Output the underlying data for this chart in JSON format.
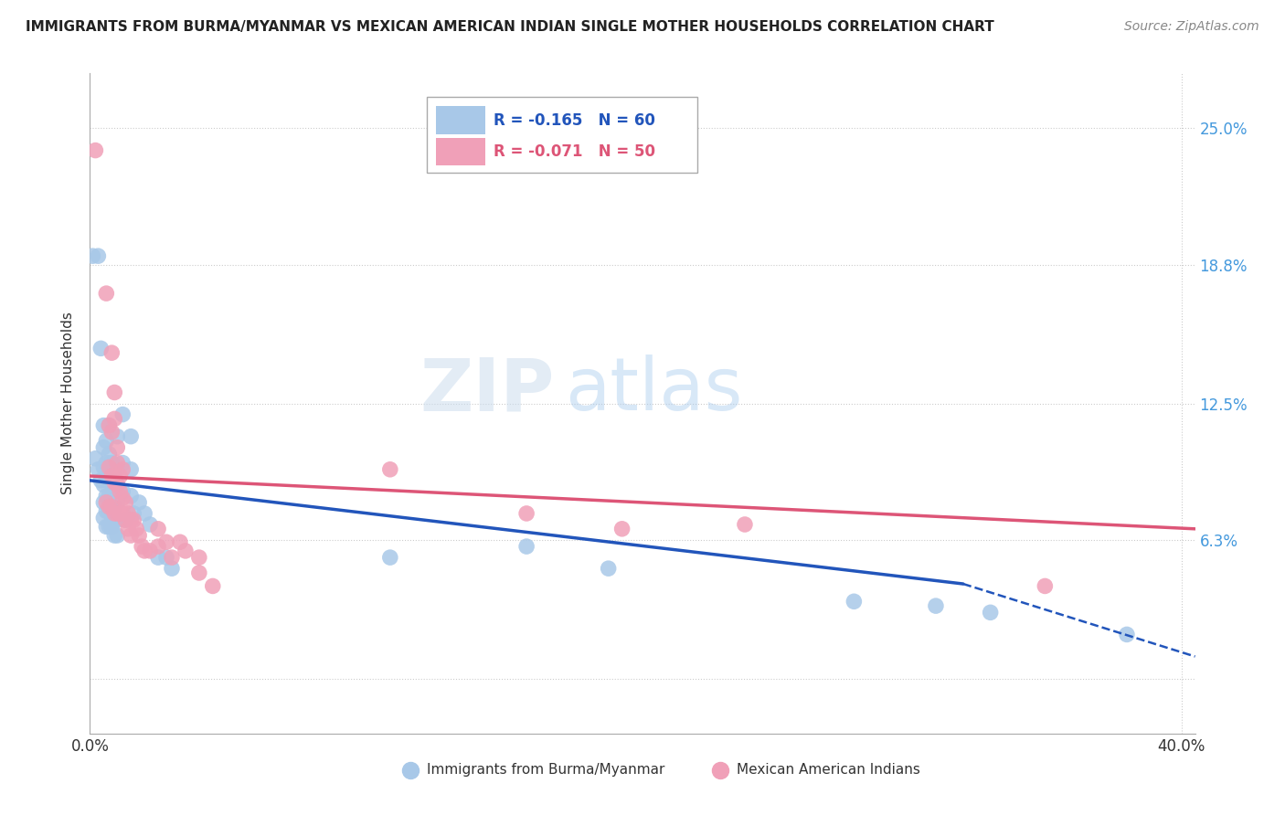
{
  "title": "IMMIGRANTS FROM BURMA/MYANMAR VS MEXICAN AMERICAN INDIAN SINGLE MOTHER HOUSEHOLDS CORRELATION CHART",
  "source": "Source: ZipAtlas.com",
  "ylabel": "Single Mother Households",
  "xlim": [
    0.0,
    0.405
  ],
  "ylim": [
    -0.025,
    0.275
  ],
  "yticks": [
    0.0,
    0.063,
    0.125,
    0.188,
    0.25
  ],
  "ytick_labels": [
    "",
    "6.3%",
    "12.5%",
    "18.8%",
    "25.0%"
  ],
  "xticks": [
    0.0,
    0.1,
    0.2,
    0.3,
    0.4
  ],
  "xtick_labels": [
    "0.0%",
    "",
    "",
    "",
    "40.0%"
  ],
  "blue_color": "#a8c8e8",
  "pink_color": "#f0a0b8",
  "blue_line_color": "#2255bb",
  "pink_line_color": "#dd5577",
  "watermark_zip": "ZIP",
  "watermark_atlas": "atlas",
  "blue_scatter": [
    [
      0.001,
      0.192
    ],
    [
      0.003,
      0.192
    ],
    [
      0.004,
      0.15
    ],
    [
      0.002,
      0.1
    ],
    [
      0.003,
      0.095
    ],
    [
      0.004,
      0.09
    ],
    [
      0.005,
      0.115
    ],
    [
      0.005,
      0.105
    ],
    [
      0.005,
      0.096
    ],
    [
      0.005,
      0.088
    ],
    [
      0.005,
      0.08
    ],
    [
      0.005,
      0.073
    ],
    [
      0.006,
      0.108
    ],
    [
      0.006,
      0.098
    ],
    [
      0.006,
      0.09
    ],
    [
      0.006,
      0.083
    ],
    [
      0.006,
      0.076
    ],
    [
      0.006,
      0.069
    ],
    [
      0.007,
      0.115
    ],
    [
      0.007,
      0.102
    ],
    [
      0.007,
      0.093
    ],
    [
      0.007,
      0.083
    ],
    [
      0.007,
      0.076
    ],
    [
      0.007,
      0.069
    ],
    [
      0.008,
      0.098
    ],
    [
      0.008,
      0.09
    ],
    [
      0.008,
      0.082
    ],
    [
      0.008,
      0.075
    ],
    [
      0.008,
      0.069
    ],
    [
      0.009,
      0.093
    ],
    [
      0.009,
      0.085
    ],
    [
      0.009,
      0.078
    ],
    [
      0.009,
      0.072
    ],
    [
      0.009,
      0.065
    ],
    [
      0.01,
      0.11
    ],
    [
      0.01,
      0.095
    ],
    [
      0.01,
      0.088
    ],
    [
      0.01,
      0.08
    ],
    [
      0.01,
      0.072
    ],
    [
      0.01,
      0.065
    ],
    [
      0.012,
      0.12
    ],
    [
      0.012,
      0.098
    ],
    [
      0.012,
      0.085
    ],
    [
      0.013,
      0.072
    ],
    [
      0.015,
      0.11
    ],
    [
      0.015,
      0.095
    ],
    [
      0.015,
      0.083
    ],
    [
      0.016,
      0.075
    ],
    [
      0.018,
      0.08
    ],
    [
      0.02,
      0.075
    ],
    [
      0.022,
      0.07
    ],
    [
      0.025,
      0.055
    ],
    [
      0.028,
      0.055
    ],
    [
      0.03,
      0.05
    ],
    [
      0.11,
      0.055
    ],
    [
      0.16,
      0.06
    ],
    [
      0.19,
      0.05
    ],
    [
      0.28,
      0.035
    ],
    [
      0.31,
      0.033
    ],
    [
      0.33,
      0.03
    ],
    [
      0.38,
      0.02
    ]
  ],
  "pink_scatter": [
    [
      0.002,
      0.24
    ],
    [
      0.006,
      0.175
    ],
    [
      0.008,
      0.148
    ],
    [
      0.009,
      0.13
    ],
    [
      0.007,
      0.115
    ],
    [
      0.008,
      0.112
    ],
    [
      0.009,
      0.118
    ],
    [
      0.01,
      0.105
    ],
    [
      0.01,
      0.098
    ],
    [
      0.007,
      0.096
    ],
    [
      0.008,
      0.092
    ],
    [
      0.009,
      0.089
    ],
    [
      0.01,
      0.088
    ],
    [
      0.011,
      0.085
    ],
    [
      0.011,
      0.092
    ],
    [
      0.012,
      0.095
    ],
    [
      0.012,
      0.082
    ],
    [
      0.006,
      0.08
    ],
    [
      0.007,
      0.078
    ],
    [
      0.008,
      0.078
    ],
    [
      0.009,
      0.075
    ],
    [
      0.01,
      0.075
    ],
    [
      0.011,
      0.075
    ],
    [
      0.012,
      0.075
    ],
    [
      0.013,
      0.08
    ],
    [
      0.013,
      0.072
    ],
    [
      0.014,
      0.075
    ],
    [
      0.014,
      0.068
    ],
    [
      0.015,
      0.072
    ],
    [
      0.015,
      0.065
    ],
    [
      0.016,
      0.072
    ],
    [
      0.017,
      0.068
    ],
    [
      0.018,
      0.065
    ],
    [
      0.019,
      0.06
    ],
    [
      0.02,
      0.058
    ],
    [
      0.022,
      0.058
    ],
    [
      0.025,
      0.068
    ],
    [
      0.025,
      0.06
    ],
    [
      0.028,
      0.062
    ],
    [
      0.03,
      0.055
    ],
    [
      0.033,
      0.062
    ],
    [
      0.035,
      0.058
    ],
    [
      0.04,
      0.055
    ],
    [
      0.04,
      0.048
    ],
    [
      0.045,
      0.042
    ],
    [
      0.11,
      0.095
    ],
    [
      0.16,
      0.075
    ],
    [
      0.195,
      0.068
    ],
    [
      0.24,
      0.07
    ],
    [
      0.35,
      0.042
    ]
  ],
  "blue_line_solid_end": 0.32,
  "pink_line_start": 0.0,
  "pink_line_end": 0.405
}
